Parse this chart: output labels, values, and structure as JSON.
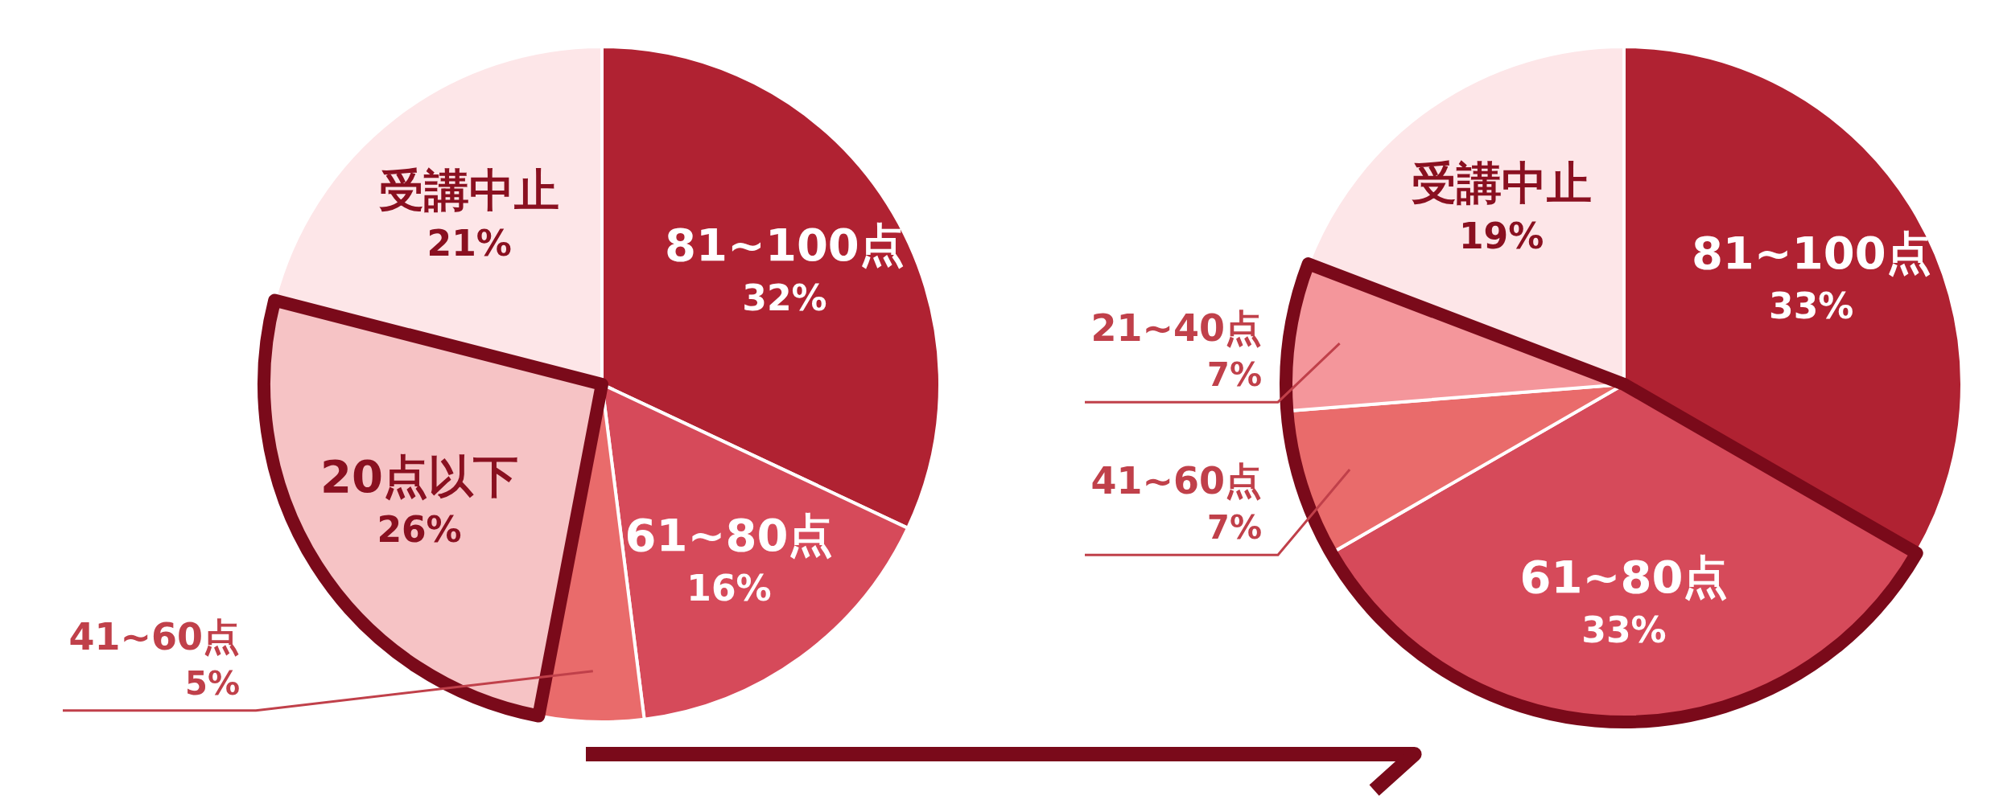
{
  "chart_data": [
    {
      "type": "pie",
      "categories": [
        "81~100点",
        "61~80点",
        "41~60点",
        "20点以下",
        "受講中止"
      ],
      "values": [
        32,
        16,
        5,
        26,
        21
      ],
      "value_labels": [
        "32%",
        "16%",
        "5%",
        "26%",
        "21%"
      ],
      "colors": [
        "#b02232",
        "#d64a5a",
        "#e96b6b",
        "#f6c3c5",
        "#fde6e8"
      ]
    },
    {
      "type": "pie",
      "categories": [
        "81~100点",
        "61~80点",
        "41~60点",
        "21~40点",
        "受講中止"
      ],
      "values": [
        33,
        33,
        7,
        7,
        19
      ],
      "value_labels": [
        "33%",
        "33%",
        "7%",
        "7%",
        "19%"
      ],
      "colors": [
        "#b02232",
        "#d64a5a",
        "#e96b6b",
        "#f4969b",
        "#fde6e8"
      ]
    }
  ]
}
